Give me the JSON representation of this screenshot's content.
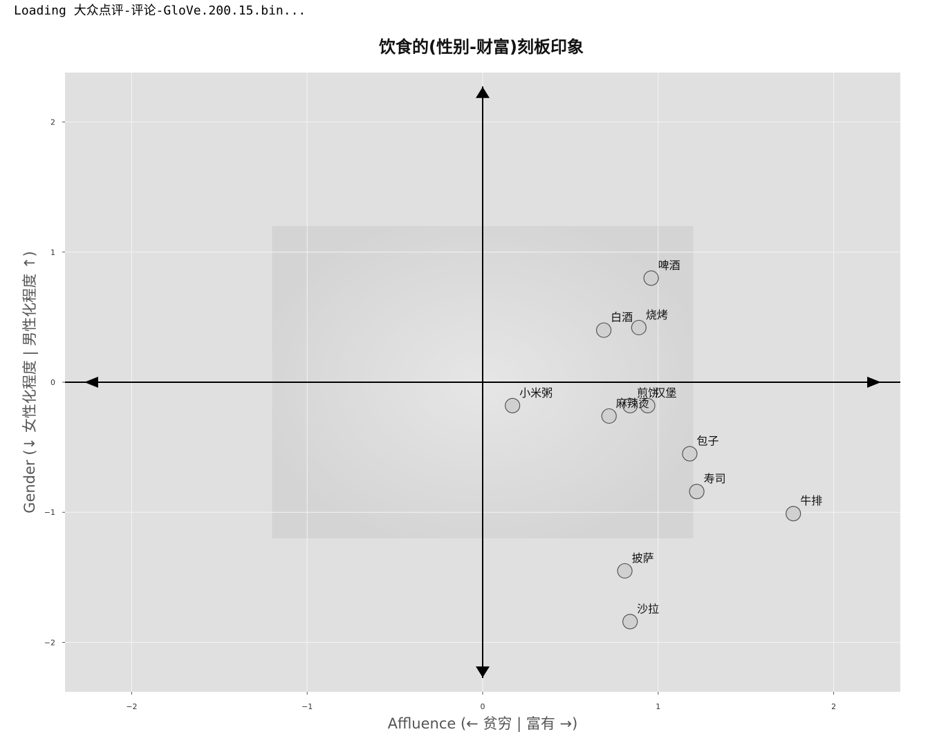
{
  "status": {
    "text": "Loading 大众点评-评论-GloVe.200.15.bin..."
  },
  "chart_data": {
    "type": "scatter",
    "title": "饮食的(性别-财富)刻板印象",
    "xlabel": "Affluence (← 贫穷 | 富有 →)",
    "ylabel": "Gender (↓ 女性化程度 | 男性化程度 ↑)",
    "xlim": [
      -2.38,
      2.38
    ],
    "ylim": [
      -2.38,
      2.38
    ],
    "xticks": [
      -2,
      -1,
      0,
      1,
      2
    ],
    "yticks": [
      -2,
      -1,
      0,
      1,
      2
    ],
    "xtick_labels": [
      "−2",
      "−1",
      "0",
      "1",
      "2"
    ],
    "ytick_labels": [
      "−2",
      "−1",
      "0",
      "1",
      "2"
    ],
    "grid": true,
    "shaded_region": {
      "x": [
        -1.2,
        1.2
      ],
      "y": [
        -1.2,
        1.2
      ]
    },
    "points": [
      {
        "label": "啤酒",
        "x": 0.96,
        "y": 0.8
      },
      {
        "label": "白酒",
        "x": 0.69,
        "y": 0.4
      },
      {
        "label": "烧烤",
        "x": 0.89,
        "y": 0.42
      },
      {
        "label": "小米粥",
        "x": 0.17,
        "y": -0.18
      },
      {
        "label": "煎饼",
        "x": 0.84,
        "y": -0.18
      },
      {
        "label": "汉堡",
        "x": 0.94,
        "y": -0.18
      },
      {
        "label": "麻辣烫",
        "x": 0.72,
        "y": -0.26
      },
      {
        "label": "包子",
        "x": 1.18,
        "y": -0.55
      },
      {
        "label": "寿司",
        "x": 1.22,
        "y": -0.84
      },
      {
        "label": "牛排",
        "x": 1.77,
        "y": -1.01
      },
      {
        "label": "披萨",
        "x": 0.81,
        "y": -1.45
      },
      {
        "label": "沙拉",
        "x": 0.84,
        "y": -1.84
      }
    ],
    "colors": {
      "plot_background": "#e0e0e0",
      "grid": "#f3f3f3",
      "shaded_region": "#d4d4d4",
      "marker_fill": "#d0d0d0",
      "marker_edge": "#555555",
      "axis_arrows": "#000000"
    }
  }
}
